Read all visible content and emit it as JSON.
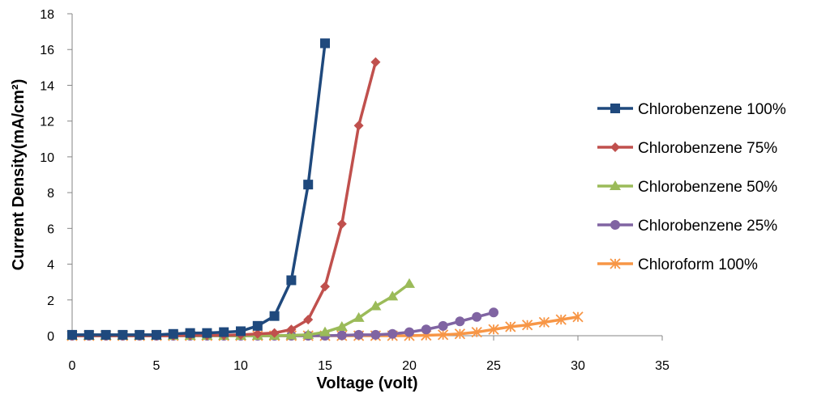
{
  "chart_data": {
    "type": "line",
    "title": "",
    "xlabel": "Voltage (volt)",
    "ylabel": "Current Density(mA/cm²)",
    "xlim": [
      0,
      35
    ],
    "ylim": [
      0,
      18
    ],
    "xticks": [
      "0",
      "5",
      "10",
      "15",
      "20",
      "25",
      "30",
      "35"
    ],
    "yticks": [
      "0",
      "2",
      "4",
      "6",
      "8",
      "10",
      "12",
      "14",
      "16",
      "18"
    ],
    "grid": false,
    "legend_position": "right",
    "series": [
      {
        "name": "Chlorobenzene 100%",
        "color": "#1F497D",
        "marker": "square",
        "x": [
          0,
          1,
          2,
          3,
          4,
          5,
          6,
          7,
          8,
          9,
          10,
          11,
          12,
          13,
          14,
          15
        ],
        "y": [
          0.05,
          0.05,
          0.05,
          0.05,
          0.05,
          0.05,
          0.1,
          0.15,
          0.15,
          0.2,
          0.25,
          0.55,
          1.1,
          3.1,
          8.45,
          16.35
        ]
      },
      {
        "name": "Chlorobenzene 75%",
        "color": "#C0504D",
        "marker": "diamond",
        "x": [
          0,
          1,
          2,
          3,
          4,
          5,
          6,
          7,
          8,
          9,
          10,
          11,
          12,
          13,
          14,
          15,
          16,
          17,
          18
        ],
        "y": [
          0,
          0,
          0,
          0,
          0,
          0,
          0,
          0.02,
          0.02,
          0.03,
          0.05,
          0.1,
          0.15,
          0.35,
          0.9,
          2.75,
          6.25,
          11.75,
          15.3
        ]
      },
      {
        "name": "Chlorobenzene 50%",
        "color": "#9BBB59",
        "marker": "triangle",
        "x": [
          0,
          1,
          2,
          3,
          4,
          5,
          6,
          7,
          8,
          9,
          10,
          11,
          12,
          13,
          14,
          15,
          16,
          17,
          18,
          19,
          20
        ],
        "y": [
          0,
          0,
          0,
          0,
          0,
          0,
          0,
          0,
          0,
          0,
          0,
          0,
          0,
          0.02,
          0.05,
          0.2,
          0.5,
          1.0,
          1.65,
          2.2,
          2.9
        ]
      },
      {
        "name": "Chlorobenzene 25%",
        "color": "#8064A2",
        "marker": "circle",
        "x": [
          0,
          1,
          2,
          3,
          4,
          5,
          6,
          7,
          8,
          9,
          10,
          11,
          12,
          13,
          14,
          15,
          16,
          17,
          18,
          19,
          20,
          21,
          22,
          23,
          24,
          25
        ],
        "y": [
          0,
          0,
          0,
          0,
          0,
          0,
          0,
          0,
          0,
          0,
          0,
          0,
          0,
          0,
          0,
          0,
          0.02,
          0.05,
          0.05,
          0.1,
          0.2,
          0.35,
          0.55,
          0.8,
          1.05,
          1.3
        ]
      },
      {
        "name": "Chloroform 100%",
        "color": "#F79646",
        "marker": "star",
        "x": [
          0,
          1,
          2,
          3,
          4,
          5,
          6,
          7,
          8,
          9,
          10,
          11,
          12,
          13,
          14,
          15,
          16,
          17,
          18,
          19,
          20,
          21,
          22,
          23,
          24,
          25,
          26,
          27,
          28,
          29,
          30
        ],
        "y": [
          0,
          0,
          0,
          0,
          0,
          0,
          0,
          0,
          0,
          0,
          0,
          0,
          0,
          0,
          0,
          0,
          0,
          0,
          0,
          0,
          0,
          0.02,
          0.05,
          0.1,
          0.2,
          0.35,
          0.5,
          0.6,
          0.75,
          0.9,
          1.05
        ]
      }
    ]
  }
}
